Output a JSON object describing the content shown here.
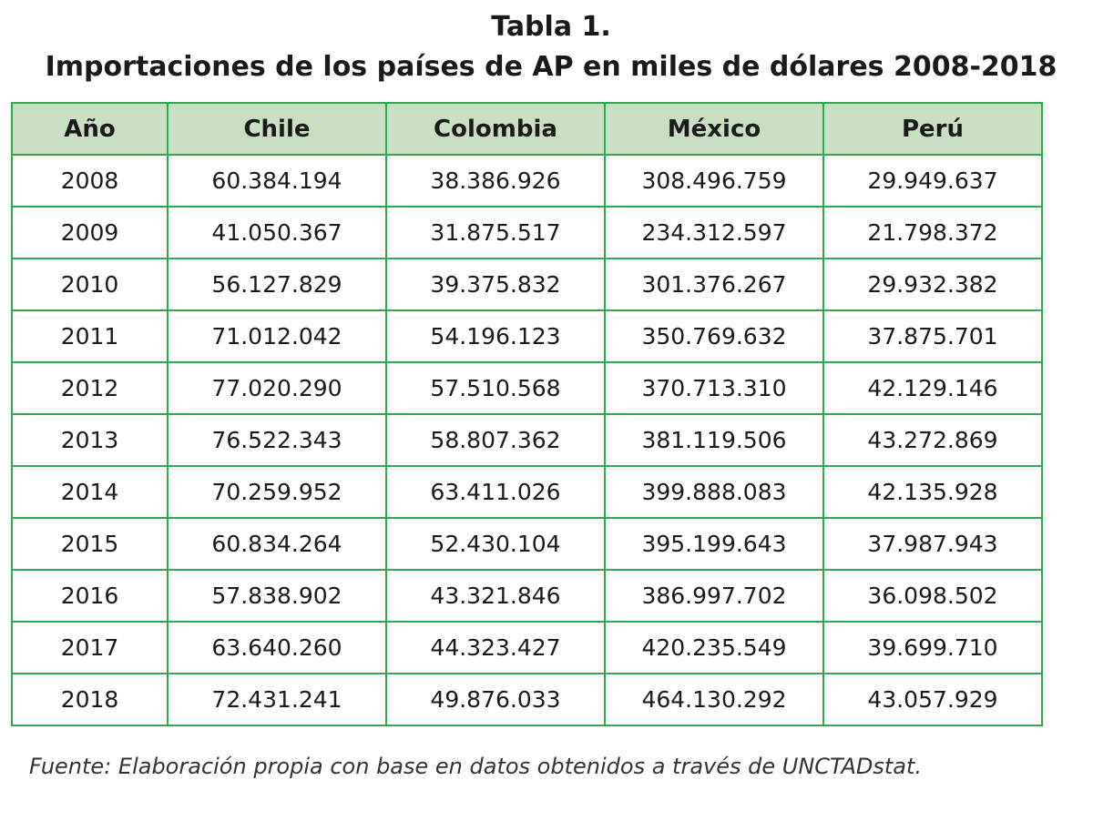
{
  "title": {
    "line1": "Tabla 1.",
    "line2": "Importaciones de los países de AP en miles de dólares 2008-2018"
  },
  "table": {
    "headers": [
      "Año",
      "Chile",
      "Colombia",
      "México",
      "Perú"
    ],
    "rows": [
      [
        "2008",
        "60.384.194",
        "38.386.926",
        "308.496.759",
        "29.949.637"
      ],
      [
        "2009",
        "41.050.367",
        "31.875.517",
        "234.312.597",
        "21.798.372"
      ],
      [
        "2010",
        "56.127.829",
        "39.375.832",
        "301.376.267",
        "29.932.382"
      ],
      [
        "2011",
        "71.012.042",
        "54.196.123",
        "350.769.632",
        "37.875.701"
      ],
      [
        "2012",
        "77.020.290",
        "57.510.568",
        "370.713.310",
        "42.129.146"
      ],
      [
        "2013",
        "76.522.343",
        "58.807.362",
        "381.119.506",
        "43.272.869"
      ],
      [
        "2014",
        "70.259.952",
        "63.411.026",
        "399.888.083",
        "42.135.928"
      ],
      [
        "2015",
        "60.834.264",
        "52.430.104",
        "395.199.643",
        "37.987.943"
      ],
      [
        "2016",
        "57.838.902",
        "43.321.846",
        "386.997.702",
        "36.098.502"
      ],
      [
        "2017",
        "63.640.260",
        "44.323.427",
        "420.235.549",
        "39.699.710"
      ],
      [
        "2018",
        "72.431.241",
        "49.876.033",
        "464.130.292",
        "43.057.929"
      ]
    ]
  },
  "source": "Fuente: Elaboración propia con base en datos obtenidos a través de UNCTADstat.",
  "colors": {
    "border": "#2fa84f",
    "header_bg": "#c8dfc2"
  }
}
